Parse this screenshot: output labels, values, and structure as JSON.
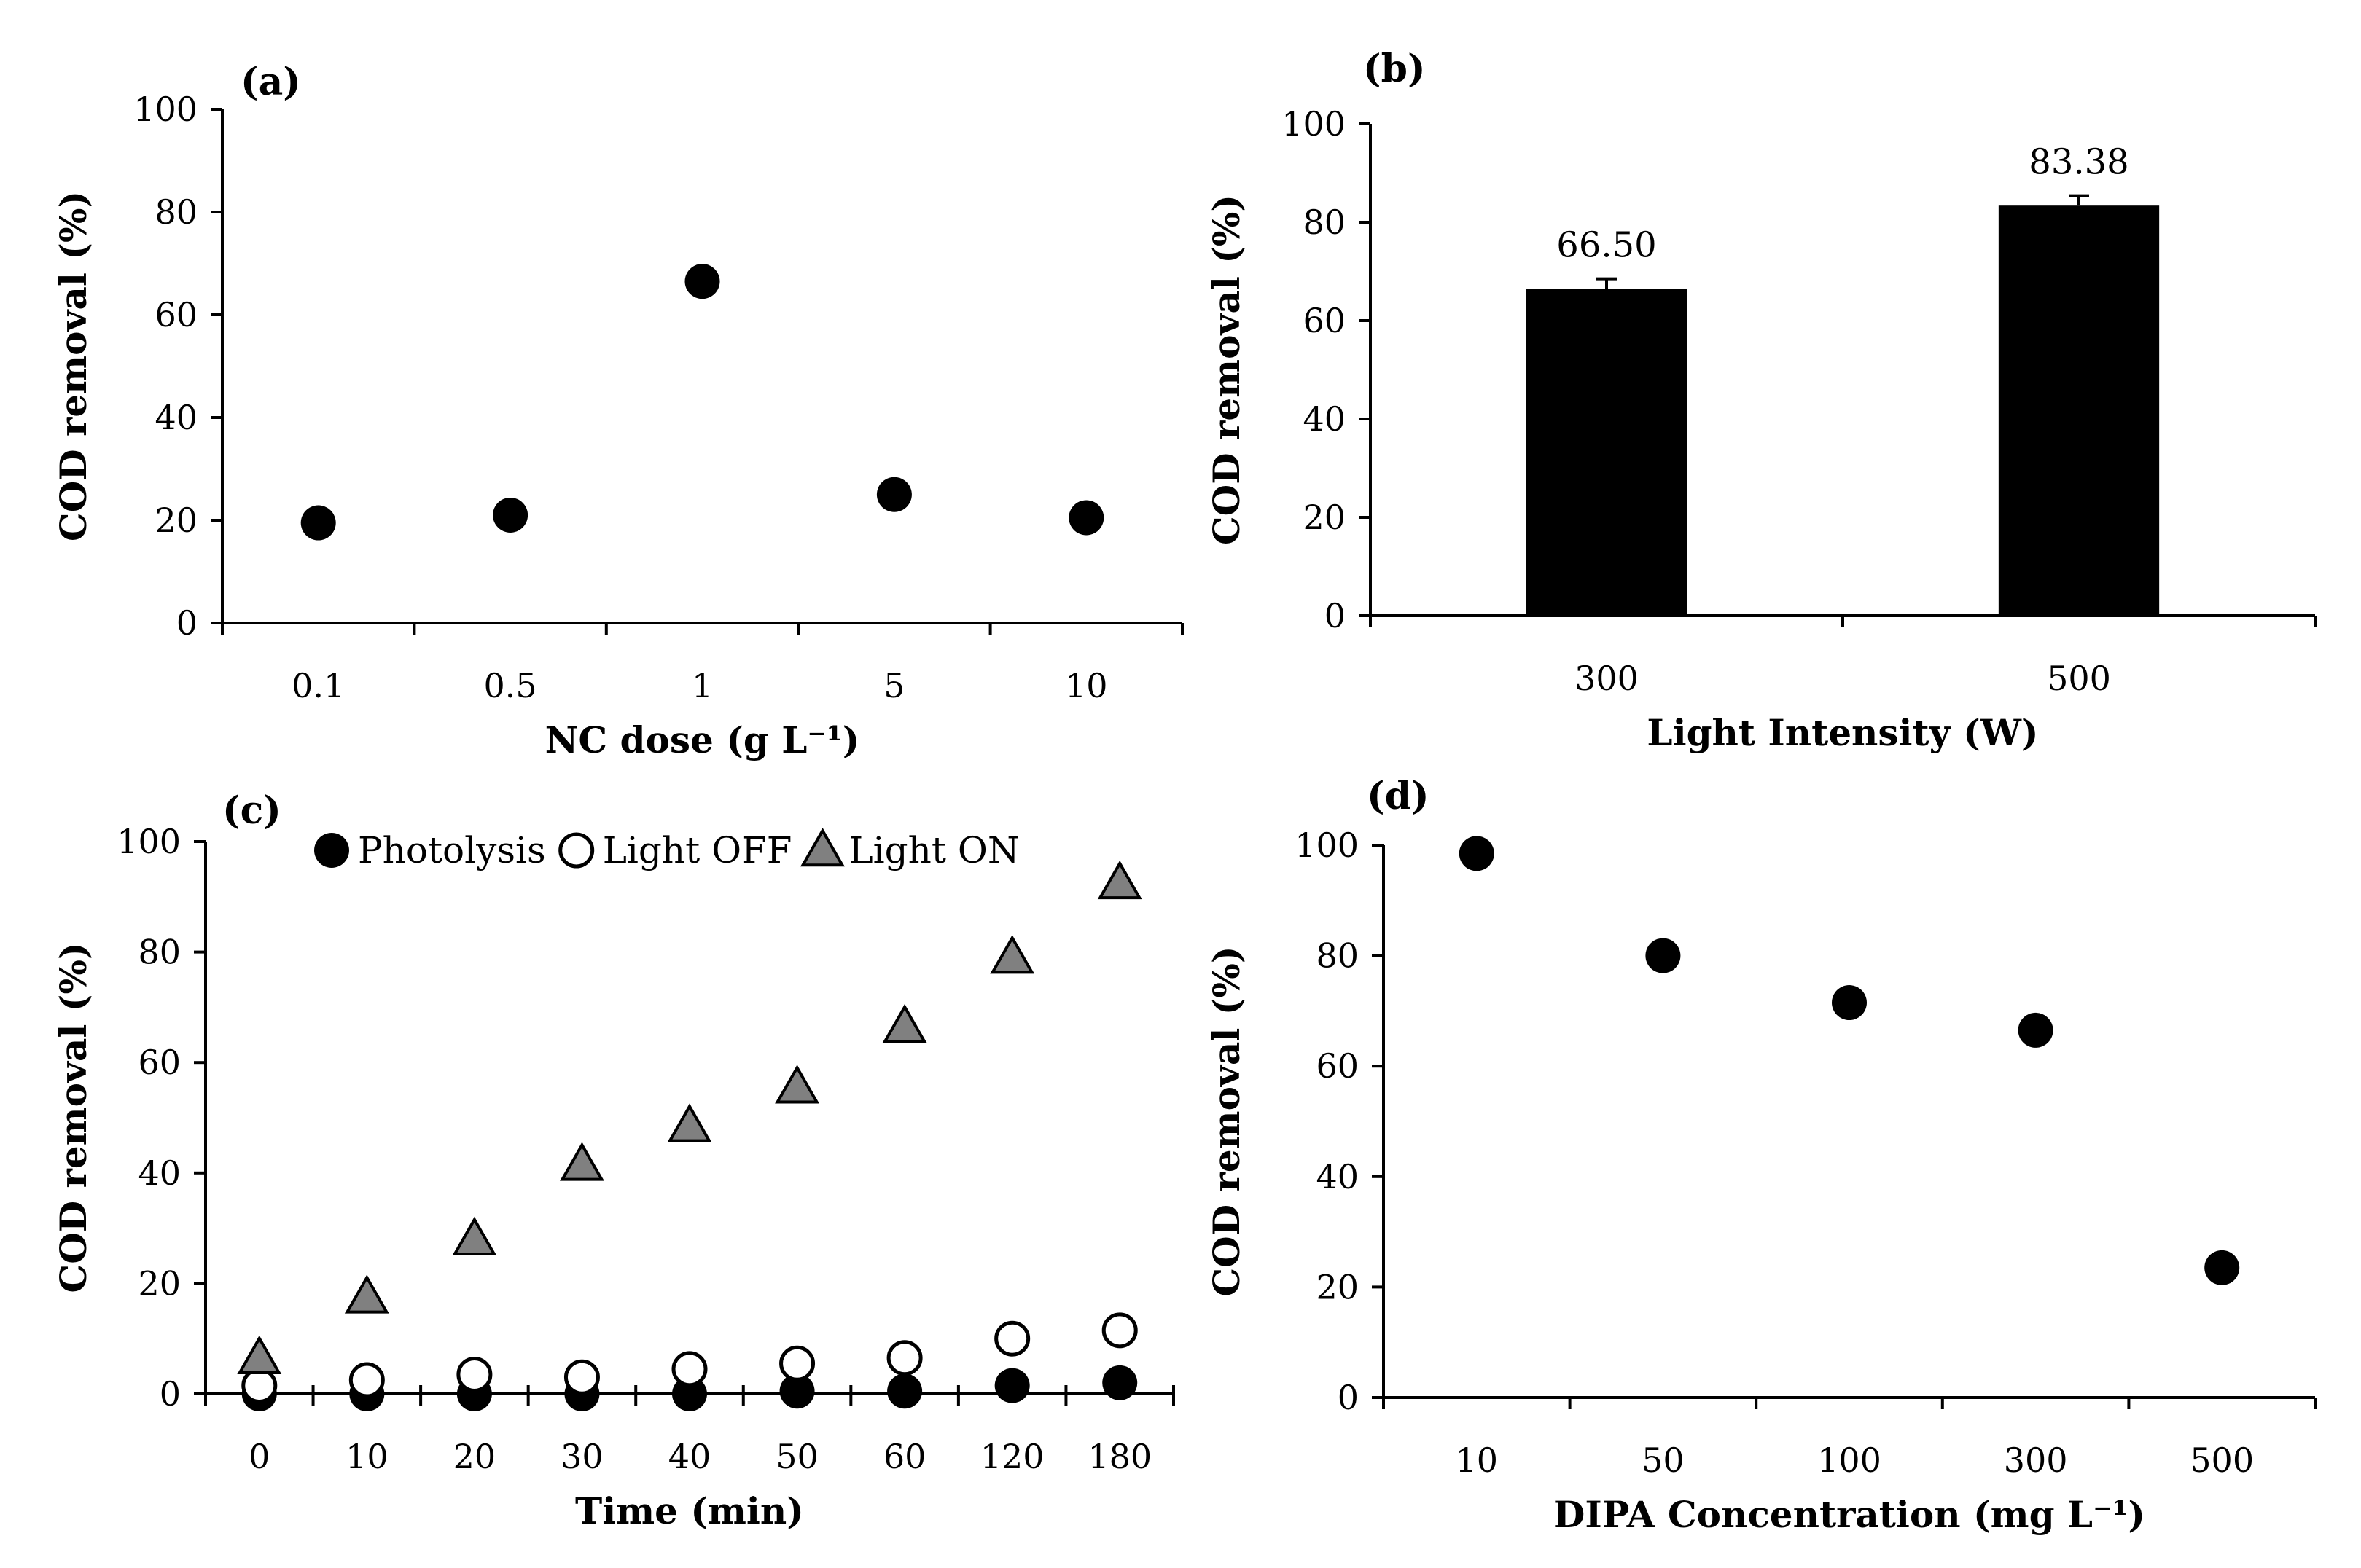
{
  "chart_data": [
    {
      "panel": "(a)",
      "type": "scatter",
      "categories": [
        "0.1",
        "0.5",
        "1",
        "5",
        "10"
      ],
      "series": [
        {
          "values": [
            19.5,
            21,
            66.5,
            25,
            20.5
          ]
        }
      ],
      "xlabel": "NC dose (g L⁻¹)",
      "ylabel": "COD removal (%)",
      "ylim": [
        0,
        100
      ],
      "yticks": [
        "0",
        "20",
        "40",
        "60",
        "80",
        "100"
      ],
      "grid": false
    },
    {
      "panel": "(b)",
      "type": "bar",
      "categories": [
        "300",
        "500"
      ],
      "values": [
        66.5,
        83.38
      ],
      "data_labels": [
        "66.50",
        "83.38"
      ],
      "error": [
        2,
        2
      ],
      "xlabel": "Light Intensity (W)",
      "ylabel": "COD removal (%)",
      "ylim": [
        0,
        100
      ],
      "yticks": [
        "0",
        "20",
        "40",
        "60",
        "80",
        "100"
      ],
      "grid": false,
      "bar_color": "#000000"
    },
    {
      "panel": "(c)",
      "type": "scatter",
      "categories": [
        "0",
        "10",
        "20",
        "30",
        "40",
        "50",
        "60",
        "120",
        "180"
      ],
      "series": [
        {
          "name": "Photolysis",
          "marker": "filled-circle",
          "values": [
            0,
            0,
            0,
            0,
            0,
            0.5,
            0.5,
            1.5,
            2
          ]
        },
        {
          "name": "Light OFF",
          "marker": "open-circle",
          "values": [
            1.5,
            2.5,
            3.5,
            3,
            4.5,
            5.5,
            6.5,
            10,
            11.5
          ]
        },
        {
          "name": "Light ON",
          "marker": "gray-triangle",
          "values": [
            6.5,
            17.5,
            28,
            41.5,
            48.5,
            55.5,
            66.5,
            79,
            92.5
          ]
        }
      ],
      "xlabel": "Time (min)",
      "ylabel": "COD removal (%)",
      "ylim": [
        0,
        100
      ],
      "yticks": [
        "0",
        "20",
        "40",
        "60",
        "80",
        "100"
      ],
      "legend_position": "top",
      "grid": false,
      "triangle_color": "#808080"
    },
    {
      "panel": "(d)",
      "type": "scatter",
      "categories": [
        "10",
        "50",
        "100",
        "300",
        "500"
      ],
      "series": [
        {
          "values": [
            98.5,
            80,
            71.5,
            66.5,
            23.5
          ]
        }
      ],
      "xlabel": "DIPA Concentration (mg L⁻¹)",
      "ylabel": "COD removal (%)",
      "ylim": [
        0,
        100
      ],
      "yticks": [
        "0",
        "20",
        "40",
        "60",
        "80",
        "100"
      ],
      "grid": false
    }
  ]
}
